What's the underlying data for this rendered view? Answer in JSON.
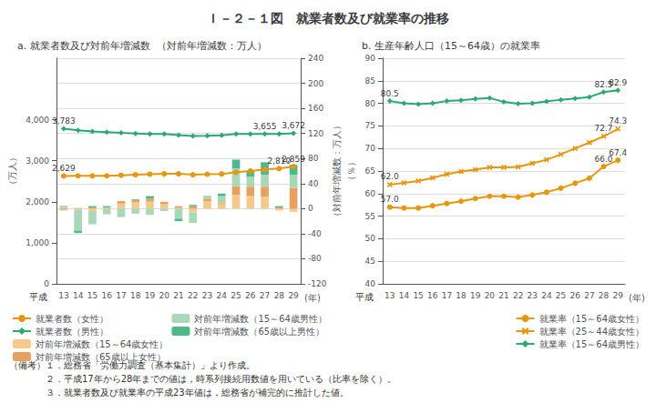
{
  "title": "Ｉ－２－１図　就業者数及び就業率の推移",
  "notes": [
    "（備考）１．総務省「労働力調査（基本集計）」より作成。",
    "　　　　２．平成17年から28年までの値は，時系列接続用数値を用いている（比率を除く）。",
    "　　　　３．就業者数及び就業率の平成23年値は，総務省が補完的に推計した値。"
  ],
  "chart_data": [
    {
      "type": "bar",
      "title": "a. 就業者数及び対前年増減数  （対前年増減数：万人）",
      "xlabel": "(年)",
      "ylabel": "（万人）",
      "y2label": "（対前年増減数：万人）",
      "categories": [
        "13",
        "14",
        "15",
        "16",
        "17",
        "18",
        "19",
        "20",
        "21",
        "22",
        "23",
        "24",
        "25",
        "26",
        "27",
        "28",
        "29"
      ],
      "ylim": [
        0,
        5500
      ],
      "yticks": [
        0,
        {
          "value": 1000,
          "label": "1,000"
        },
        {
          "value": 2000,
          "label": "2,000"
        },
        {
          "value": 3000,
          "label": "3,000"
        },
        {
          "value": 4000,
          "label": "4,000"
        }
      ],
      "y2lim": [
        -120,
        240
      ],
      "y2ticks": [
        -120,
        -80,
        -40,
        0,
        40,
        80,
        120,
        160,
        200,
        240
      ],
      "stacked": true,
      "grid": true,
      "legend": "lower left",
      "series": [
        {
          "name": "就業者数（女性）",
          "type": "line",
          "marker": "circle",
          "color": "#e8960c",
          "values": [
            2629,
            2634,
            2632,
            2634,
            2646,
            2660,
            2673,
            2681,
            2682,
            2660,
            2672,
            2680,
            2720,
            2752,
            2787,
            2810,
            2859
          ]
        },
        {
          "name": "就業者数（男性）",
          "type": "line",
          "marker": "diamond",
          "color": "#2aaa6e",
          "values": [
            3783,
            3742,
            3714,
            3699,
            3680,
            3667,
            3651,
            3655,
            3628,
            3605,
            3612,
            3620,
            3655,
            3655,
            3655,
            3655,
            3672
          ]
        },
        {
          "name": "対前年増減数（15～64歳女性）",
          "type": "bar",
          "axis": "y2",
          "color": "#f5c98a",
          "values": [
            3,
            -2,
            -4,
            2,
            8,
            10,
            11,
            7,
            1,
            -6,
            12,
            8,
            22,
            20,
            19,
            -3,
            -5
          ]
        },
        {
          "name": "対前年増減数（65歳以上女性）",
          "type": "bar",
          "axis": "y2",
          "color": "#e8a060",
          "values": [
            -1,
            1,
            2,
            0,
            4,
            4,
            5,
            4,
            3,
            4,
            4,
            2,
            14,
            15,
            16,
            2,
            33
          ]
        },
        {
          "name": "対前年増減数（15～64歳男性）",
          "type": "bar",
          "axis": "y2",
          "color": "#a8d8b8",
          "values": [
            -2,
            -33,
            -21,
            -9,
            -12,
            -8,
            -10,
            -4,
            -16,
            -17,
            3,
            10,
            28,
            16,
            19,
            0,
            21
          ]
        },
        {
          "name": "対前年増減数（65歳以上男性）",
          "type": "bar",
          "axis": "y2",
          "color": "#4db88c",
          "values": [
            1,
            -4,
            2,
            2,
            -1,
            1,
            4,
            0,
            -4,
            2,
            1,
            4,
            14,
            9,
            20,
            2,
            16
          ]
        }
      ],
      "annotations": [
        {
          "text": "平成"
        },
        {
          "text": "3,783",
          "x": "13",
          "y": 3783
        },
        {
          "text": "2,629",
          "x": "13",
          "y": 2629
        },
        {
          "text": "3,655",
          "x": "27",
          "y": 3655
        },
        {
          "text": "3,672",
          "x": "29",
          "y": 3672
        },
        {
          "text": "2,810",
          "x": "28",
          "y": 2810
        },
        {
          "text": "2,859",
          "x": "29",
          "y": 2859
        }
      ]
    },
    {
      "type": "line",
      "title": "b. 生産年齢人口（15～64歳）の就業率",
      "xlabel": "(年)",
      "ylabel": "（％）",
      "categories": [
        "13",
        "14",
        "15",
        "16",
        "17",
        "18",
        "19",
        "20",
        "21",
        "22",
        "23",
        "24",
        "25",
        "26",
        "27",
        "28",
        "29"
      ],
      "ylim": [
        40,
        90
      ],
      "yticks": [
        40,
        45,
        50,
        55,
        60,
        65,
        70,
        75,
        80,
        85,
        90
      ],
      "grid": true,
      "legend": "lower right",
      "series": [
        {
          "name": "就業率（15～64歳女性）",
          "marker": "circle",
          "color": "#e8960c",
          "values": [
            57.0,
            56.8,
            56.8,
            57.3,
            57.8,
            58.3,
            58.9,
            59.4,
            59.4,
            59.2,
            59.7,
            60.3,
            61.2,
            62.3,
            63.4,
            66.0,
            67.4
          ]
        },
        {
          "name": "就業率（25～44歳女性）",
          "marker": "x",
          "color": "#e8960c",
          "values": [
            62.0,
            62.4,
            62.8,
            63.5,
            64.3,
            64.9,
            65.3,
            65.8,
            65.8,
            65.9,
            66.7,
            67.5,
            68.7,
            70.0,
            71.3,
            72.7,
            74.3
          ]
        },
        {
          "name": "就業率（15～64歳男性）",
          "marker": "diamond",
          "color": "#2aaa6e",
          "values": [
            80.5,
            80.0,
            79.8,
            80.0,
            80.5,
            80.7,
            81.0,
            81.2,
            80.3,
            79.9,
            80.0,
            80.4,
            80.8,
            81.1,
            81.4,
            82.5,
            82.9
          ]
        }
      ],
      "annotations": [
        {
          "text": "平成"
        },
        {
          "text": "80.5",
          "x": "13",
          "y": 80.5
        },
        {
          "text": "57.0",
          "x": "13",
          "y": 57.0
        },
        {
          "text": "62.0",
          "x": "13",
          "y": 62.0
        },
        {
          "text": "82.5",
          "x": "28",
          "y": 82.5
        },
        {
          "text": "82.9",
          "x": "29",
          "y": 82.9
        },
        {
          "text": "72.7",
          "x": "28",
          "y": 72.7
        },
        {
          "text": "74.3",
          "x": "29",
          "y": 74.3
        },
        {
          "text": "66.0",
          "x": "28",
          "y": 66.0
        },
        {
          "text": "67.4",
          "x": "29",
          "y": 67.4
        }
      ]
    }
  ]
}
